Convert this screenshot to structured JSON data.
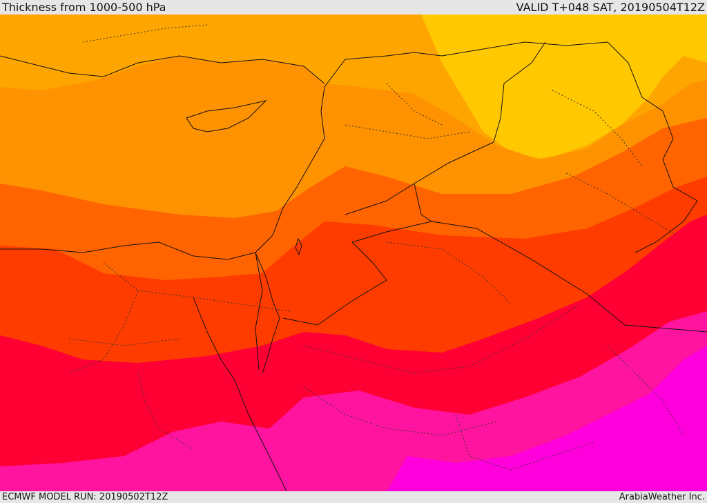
{
  "header": {
    "title": "Thickness from 1000-500 hPa",
    "valid": "VALID T+048 SAT, 20190504T12Z"
  },
  "footer": {
    "model_run": "ECMWF MODEL RUN: 20190502T12Z",
    "credit": "ArabiaWeather Inc."
  },
  "map": {
    "field": "1000-500 hPa thickness",
    "palette": {
      "band_yellow": "#ffc800",
      "band_light_orange": "#ffa500",
      "band_orange": "#ff9200",
      "band_dark_orange": "#ff6400",
      "band_red_orange": "#ff3c00",
      "band_red": "#ff0035",
      "band_magenta": "#ff14a0",
      "band_bright_magenta": "#ff00dc"
    }
  }
}
